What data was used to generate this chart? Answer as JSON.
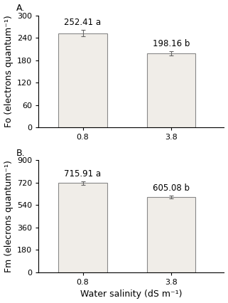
{
  "panel_A": {
    "label": "A.",
    "categories": [
      "0.8",
      "3.8"
    ],
    "values": [
      252.41,
      198.16
    ],
    "errors": [
      8,
      5
    ],
    "annotations": [
      "252.41 a",
      "198.16 b"
    ],
    "ylabel": "Fo (electrons quantum⁻¹)",
    "ylim": [
      0,
      300
    ],
    "yticks": [
      0,
      60,
      120,
      180,
      240,
      300
    ]
  },
  "panel_B": {
    "label": "B.",
    "categories": [
      "0.8",
      "3.8"
    ],
    "values": [
      715.91,
      605.08
    ],
    "errors": [
      12,
      10
    ],
    "annotations": [
      "715.91 a",
      "605.08 b"
    ],
    "ylabel": "Fm (elecrons quantum⁻¹)",
    "ylim": [
      0,
      900
    ],
    "yticks": [
      0,
      180,
      360,
      540,
      720,
      900
    ]
  },
  "xlabel": "Water salinity (dS m⁻¹)",
  "bar_color": "#f0ede8",
  "bar_edgecolor": "#888888",
  "bar_width": 0.55,
  "errorbar_color": "#666666",
  "annotation_fontsize": 8.5,
  "label_fontsize": 9,
  "tick_fontsize": 8,
  "xlabel_fontsize": 9
}
